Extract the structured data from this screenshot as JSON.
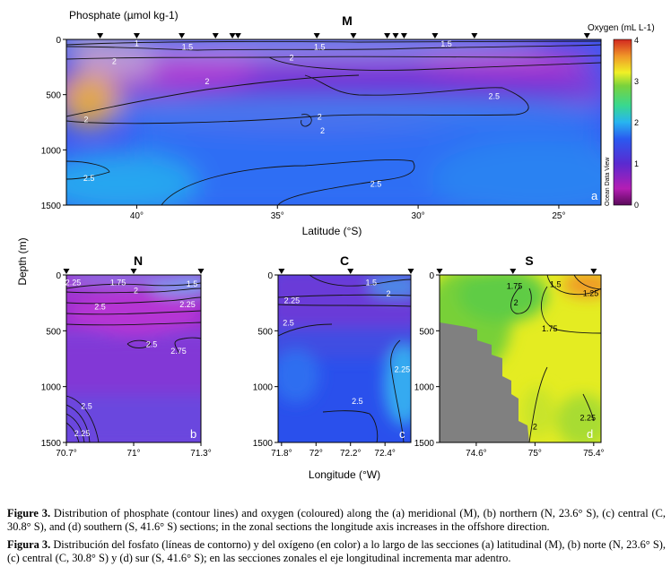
{
  "shared": {
    "ylabel": "Depth (m)",
    "xlabel_top": "Latitude (°S)",
    "xlabel_bottom": "Longitude (°W)",
    "contour_label": "Phosphate (µmol kg-1)",
    "colorbar_title": "Oxygen (mL L-1)",
    "watermark": "Ocean Data View",
    "colorbar_ticks": [
      "0",
      "1",
      "2",
      "3",
      "4"
    ],
    "depth_ticks": [
      "0",
      "500",
      "1000",
      "1500"
    ]
  },
  "chart_data": [
    {
      "id": "M",
      "panel": "a",
      "type": "heatmap",
      "title": "M",
      "xlabel": "Latitude (°S)",
      "ylabel": "Depth (m)",
      "xlim": [
        42.5,
        23.5
      ],
      "ylim": [
        0,
        1500
      ],
      "xticks": [
        {
          "v": 40,
          "t": "40°"
        },
        {
          "v": 35,
          "t": "35°"
        },
        {
          "v": 30,
          "t": "30°"
        },
        {
          "v": 25,
          "t": "25°"
        }
      ],
      "stations": [
        41.3,
        40.0,
        38.4,
        37.2,
        36.6,
        36.4,
        33.6,
        32.3,
        31.1,
        30.8,
        30.5,
        29.4,
        28.0,
        24.0
      ],
      "contour_labels": [
        {
          "text": "1",
          "x": 40.0,
          "y": 35
        },
        {
          "text": "1.5",
          "x": 38.2,
          "y": 70
        },
        {
          "text": "1.5",
          "x": 33.5,
          "y": 70
        },
        {
          "text": "1.5",
          "x": 29.0,
          "y": 40
        },
        {
          "text": "2",
          "x": 40.8,
          "y": 200
        },
        {
          "text": "2",
          "x": 34.5,
          "y": 165
        },
        {
          "text": "2",
          "x": 37.5,
          "y": 380
        },
        {
          "text": "2",
          "x": 41.8,
          "y": 725
        },
        {
          "text": "2",
          "x": 33.5,
          "y": 700
        },
        {
          "text": "2",
          "x": 33.4,
          "y": 825
        },
        {
          "text": "2.5",
          "x": 27.3,
          "y": 515
        },
        {
          "text": "2.5",
          "x": 41.7,
          "y": 1255
        },
        {
          "text": "2.5",
          "x": 31.5,
          "y": 1310
        }
      ]
    },
    {
      "id": "N",
      "panel": "b",
      "type": "heatmap",
      "title": "N",
      "xlim": [
        70.7,
        71.3
      ],
      "ylim": [
        0,
        1500
      ],
      "xticks": [
        {
          "v": 70.7,
          "t": "70.7°"
        },
        {
          "v": 71.0,
          "t": "71°"
        },
        {
          "v": 71.3,
          "t": "71.3°"
        }
      ],
      "stations": [
        70.7,
        71.0,
        71.3
      ],
      "contour_labels": [
        {
          "text": "2.25",
          "x": 70.73,
          "y": 70
        },
        {
          "text": "1.75",
          "x": 70.93,
          "y": 70
        },
        {
          "text": "2",
          "x": 71.01,
          "y": 140
        },
        {
          "text": "1.5",
          "x": 71.26,
          "y": 80
        },
        {
          "text": "2.5",
          "x": 70.85,
          "y": 285
        },
        {
          "text": "2.25",
          "x": 71.24,
          "y": 265
        },
        {
          "text": "2.5",
          "x": 71.08,
          "y": 620
        },
        {
          "text": "2.75",
          "x": 71.2,
          "y": 680
        },
        {
          "text": "2.5",
          "x": 70.79,
          "y": 1175
        },
        {
          "text": "2.25",
          "x": 70.77,
          "y": 1420
        }
      ]
    },
    {
      "id": "C",
      "panel": "c",
      "type": "heatmap",
      "title": "C",
      "xlim": [
        71.78,
        72.55
      ],
      "ylim": [
        0,
        1500
      ],
      "xticks": [
        {
          "v": 71.8,
          "t": "71.8°"
        },
        {
          "v": 72.0,
          "t": "72°"
        },
        {
          "v": 72.2,
          "t": "72.2°"
        },
        {
          "v": 72.4,
          "t": "72.4°"
        }
      ],
      "stations": [
        71.8,
        72.2,
        72.55
      ],
      "contour_labels": [
        {
          "text": "1.5",
          "x": 72.32,
          "y": 70
        },
        {
          "text": "2",
          "x": 72.42,
          "y": 170
        },
        {
          "text": "2.25",
          "x": 71.86,
          "y": 230
        },
        {
          "text": "2.5",
          "x": 71.84,
          "y": 430
        },
        {
          "text": "2.25",
          "x": 72.5,
          "y": 845
        },
        {
          "text": "2.5",
          "x": 72.24,
          "y": 1130
        }
      ]
    },
    {
      "id": "S",
      "panel": "d",
      "type": "heatmap",
      "title": "S",
      "xlim": [
        74.35,
        75.45
      ],
      "ylim": [
        0,
        1500
      ],
      "xticks": [
        {
          "v": 74.6,
          "t": "74.6°"
        },
        {
          "v": 75.0,
          "t": "75°"
        },
        {
          "v": 75.4,
          "t": "75.4°"
        }
      ],
      "stations": [
        74.35,
        74.85,
        75.4
      ],
      "contour_labels": [
        {
          "text": "1.75",
          "x": 74.86,
          "y": 100
        },
        {
          "text": "1.5",
          "x": 75.14,
          "y": 85
        },
        {
          "text": "1.25",
          "x": 75.38,
          "y": 165
        },
        {
          "text": "2",
          "x": 74.87,
          "y": 250
        },
        {
          "text": "1.75",
          "x": 75.1,
          "y": 480
        },
        {
          "text": "2.25",
          "x": 75.36,
          "y": 1280
        },
        {
          "text": "2",
          "x": 75.0,
          "y": 1360
        }
      ]
    }
  ],
  "caption_en": {
    "label": "Figure 3.",
    "text": "Distribution of phosphate (contour lines) and oxygen (coloured) along the (a) meridional (M), (b) northern (N, 23.6° S), (c) central (C, 30.8° S), and (d) southern (S, 41.6° S) sections; in the zonal sections the longitude axis increases in the offshore direction."
  },
  "caption_es": {
    "label": "Figura 3.",
    "text": "Distribución del fosfato (líneas de contorno) y del oxígeno (en color) a lo largo de las secciones (a) latitudinal (M), (b) norte (N, 23.6° S), (c) central (C, 30.8° S) y (d) sur (S, 41.6° S); en las secciones zonales el eje longitudinal incrementa mar adentro."
  }
}
